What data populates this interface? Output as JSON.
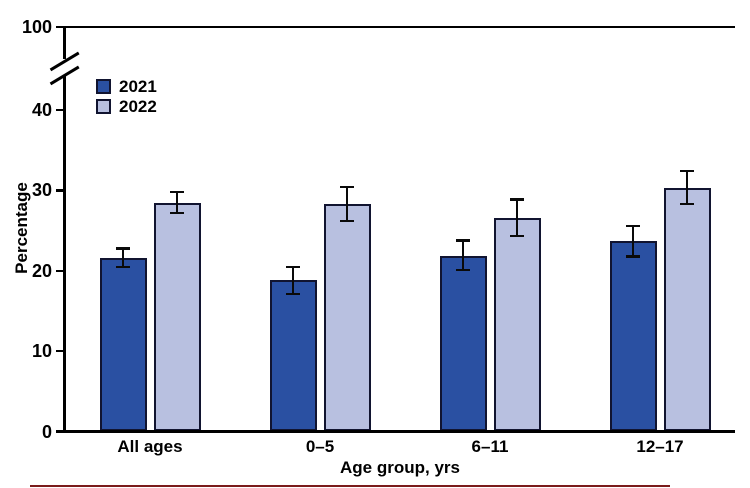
{
  "chart_data": {
    "type": "bar",
    "title": "",
    "categories": [
      "All ages",
      "0–5",
      "6–11",
      "12–17"
    ],
    "series": [
      {
        "name": "2021",
        "color": "#2a50a2",
        "values": [
          21.6,
          18.9,
          21.9,
          23.7
        ],
        "ci_low": [
          20.5,
          17.1,
          20.1,
          21.8
        ],
        "ci_high": [
          22.8,
          20.5,
          23.8,
          25.6
        ]
      },
      {
        "name": "2022",
        "color": "#b8c0e0",
        "values": [
          28.4,
          28.3,
          26.6,
          30.3
        ],
        "ci_low": [
          27.2,
          26.2,
          24.3,
          28.3
        ],
        "ci_high": [
          29.8,
          30.4,
          28.9,
          32.4
        ]
      }
    ],
    "xlabel": "Age group, yrs",
    "ylabel": "Percentage",
    "yticks": [
      0,
      10,
      20,
      30,
      40
    ],
    "broken_axis_top_tick": 100,
    "ylim": [
      0,
      100
    ],
    "axis_break": true,
    "grid": false,
    "legend_position": "upper-left",
    "error_bars": true
  },
  "style": {
    "bar_border_color": "#111430",
    "error_bar_color": "#0a0a0a",
    "axis_color": "#000000",
    "text_color": "#000000",
    "bottom_rule_color": "#7b1b1b"
  }
}
